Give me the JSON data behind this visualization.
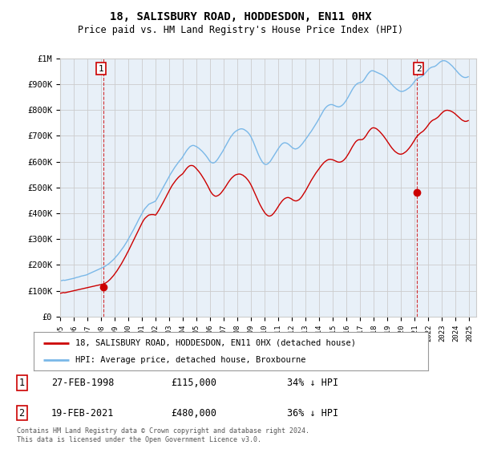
{
  "title": "18, SALISBURY ROAD, HODDESDON, EN11 0HX",
  "subtitle": "Price paid vs. HM Land Registry's House Price Index (HPI)",
  "footer": "Contains HM Land Registry data © Crown copyright and database right 2024.\nThis data is licensed under the Open Government Licence v3.0.",
  "legend_line1": "18, SALISBURY ROAD, HODDESDON, EN11 0HX (detached house)",
  "legend_line2": "HPI: Average price, detached house, Broxbourne",
  "sale1_date": "27-FEB-1998",
  "sale1_price": "£115,000",
  "sale1_hpi": "34% ↓ HPI",
  "sale2_date": "19-FEB-2021",
  "sale2_price": "£480,000",
  "sale2_hpi": "36% ↓ HPI",
  "sale1_x": 1998.15,
  "sale1_y": 115000,
  "sale2_x": 2021.13,
  "sale2_y": 480000,
  "ylim": [
    0,
    1000000
  ],
  "xlim": [
    1995.0,
    2025.5
  ],
  "hpi_color": "#7ab8e8",
  "hpi_fill_color": "#ddeeff",
  "sale_color": "#cc0000",
  "grid_color": "#cccccc",
  "background_color": "#ffffff",
  "chart_bg_color": "#e8f0f8",
  "hpi_x": [
    1995.0,
    1995.083,
    1995.167,
    1995.25,
    1995.333,
    1995.417,
    1995.5,
    1995.583,
    1995.667,
    1995.75,
    1995.833,
    1995.917,
    1996.0,
    1996.083,
    1996.167,
    1996.25,
    1996.333,
    1996.417,
    1996.5,
    1996.583,
    1996.667,
    1996.75,
    1996.833,
    1996.917,
    1997.0,
    1997.083,
    1997.167,
    1997.25,
    1997.333,
    1997.417,
    1997.5,
    1997.583,
    1997.667,
    1997.75,
    1997.833,
    1997.917,
    1998.0,
    1998.083,
    1998.167,
    1998.25,
    1998.333,
    1998.417,
    1998.5,
    1998.583,
    1998.667,
    1998.75,
    1998.833,
    1998.917,
    1999.0,
    1999.083,
    1999.167,
    1999.25,
    1999.333,
    1999.417,
    1999.5,
    1999.583,
    1999.667,
    1999.75,
    1999.833,
    1999.917,
    2000.0,
    2000.083,
    2000.167,
    2000.25,
    2000.333,
    2000.417,
    2000.5,
    2000.583,
    2000.667,
    2000.75,
    2000.833,
    2000.917,
    2001.0,
    2001.083,
    2001.167,
    2001.25,
    2001.333,
    2001.417,
    2001.5,
    2001.583,
    2001.667,
    2001.75,
    2001.833,
    2001.917,
    2002.0,
    2002.083,
    2002.167,
    2002.25,
    2002.333,
    2002.417,
    2002.5,
    2002.583,
    2002.667,
    2002.75,
    2002.833,
    2002.917,
    2003.0,
    2003.083,
    2003.167,
    2003.25,
    2003.333,
    2003.417,
    2003.5,
    2003.583,
    2003.667,
    2003.75,
    2003.833,
    2003.917,
    2004.0,
    2004.083,
    2004.167,
    2004.25,
    2004.333,
    2004.417,
    2004.5,
    2004.583,
    2004.667,
    2004.75,
    2004.833,
    2004.917,
    2005.0,
    2005.083,
    2005.167,
    2005.25,
    2005.333,
    2005.417,
    2005.5,
    2005.583,
    2005.667,
    2005.75,
    2005.833,
    2005.917,
    2006.0,
    2006.083,
    2006.167,
    2006.25,
    2006.333,
    2006.417,
    2006.5,
    2006.583,
    2006.667,
    2006.75,
    2006.833,
    2006.917,
    2007.0,
    2007.083,
    2007.167,
    2007.25,
    2007.333,
    2007.417,
    2007.5,
    2007.583,
    2007.667,
    2007.75,
    2007.833,
    2007.917,
    2008.0,
    2008.083,
    2008.167,
    2008.25,
    2008.333,
    2008.417,
    2008.5,
    2008.583,
    2008.667,
    2008.75,
    2008.833,
    2008.917,
    2009.0,
    2009.083,
    2009.167,
    2009.25,
    2009.333,
    2009.417,
    2009.5,
    2009.583,
    2009.667,
    2009.75,
    2009.833,
    2009.917,
    2010.0,
    2010.083,
    2010.167,
    2010.25,
    2010.333,
    2010.417,
    2010.5,
    2010.583,
    2010.667,
    2010.75,
    2010.833,
    2010.917,
    2011.0,
    2011.083,
    2011.167,
    2011.25,
    2011.333,
    2011.417,
    2011.5,
    2011.583,
    2011.667,
    2011.75,
    2011.833,
    2011.917,
    2012.0,
    2012.083,
    2012.167,
    2012.25,
    2012.333,
    2012.417,
    2012.5,
    2012.583,
    2012.667,
    2012.75,
    2012.833,
    2012.917,
    2013.0,
    2013.083,
    2013.167,
    2013.25,
    2013.333,
    2013.417,
    2013.5,
    2013.583,
    2013.667,
    2013.75,
    2013.833,
    2013.917,
    2014.0,
    2014.083,
    2014.167,
    2014.25,
    2014.333,
    2014.417,
    2014.5,
    2014.583,
    2014.667,
    2014.75,
    2014.833,
    2014.917,
    2015.0,
    2015.083,
    2015.167,
    2015.25,
    2015.333,
    2015.417,
    2015.5,
    2015.583,
    2015.667,
    2015.75,
    2015.833,
    2015.917,
    2016.0,
    2016.083,
    2016.167,
    2016.25,
    2016.333,
    2016.417,
    2016.5,
    2016.583,
    2016.667,
    2016.75,
    2016.833,
    2016.917,
    2017.0,
    2017.083,
    2017.167,
    2017.25,
    2017.333,
    2017.417,
    2017.5,
    2017.583,
    2017.667,
    2017.75,
    2017.833,
    2017.917,
    2018.0,
    2018.083,
    2018.167,
    2018.25,
    2018.333,
    2018.417,
    2018.5,
    2018.583,
    2018.667,
    2018.75,
    2018.833,
    2018.917,
    2019.0,
    2019.083,
    2019.167,
    2019.25,
    2019.333,
    2019.417,
    2019.5,
    2019.583,
    2019.667,
    2019.75,
    2019.833,
    2019.917,
    2020.0,
    2020.083,
    2020.167,
    2020.25,
    2020.333,
    2020.417,
    2020.5,
    2020.583,
    2020.667,
    2020.75,
    2020.833,
    2020.917,
    2021.0,
    2021.083,
    2021.167,
    2021.25,
    2021.333,
    2021.417,
    2021.5,
    2021.583,
    2021.667,
    2021.75,
    2021.833,
    2021.917,
    2022.0,
    2022.083,
    2022.167,
    2022.25,
    2022.333,
    2022.417,
    2022.5,
    2022.583,
    2022.667,
    2022.75,
    2022.833,
    2022.917,
    2023.0,
    2023.083,
    2023.167,
    2023.25,
    2023.333,
    2023.417,
    2023.5,
    2023.583,
    2023.667,
    2023.75,
    2023.833,
    2023.917,
    2024.0,
    2024.083,
    2024.167,
    2024.25,
    2024.333,
    2024.417,
    2024.5,
    2024.583,
    2024.667,
    2024.75,
    2024.833,
    2024.917
  ],
  "hpi_y": [
    138000,
    139000,
    140000,
    141000,
    140000,
    141000,
    142000,
    143000,
    144000,
    145000,
    146000,
    147000,
    148000,
    149000,
    151000,
    152000,
    153000,
    154000,
    156000,
    157000,
    158000,
    159000,
    160000,
    161000,
    163000,
    165000,
    167000,
    169000,
    171000,
    173000,
    175000,
    177000,
    179000,
    181000,
    183000,
    185000,
    187000,
    189000,
    191000,
    193000,
    196000,
    199000,
    202000,
    205000,
    209000,
    213000,
    217000,
    221000,
    226000,
    231000,
    236000,
    241000,
    247000,
    253000,
    259000,
    265000,
    271000,
    278000,
    285000,
    292000,
    300000,
    308000,
    316000,
    324000,
    332000,
    340000,
    349000,
    357000,
    366000,
    375000,
    383000,
    391000,
    399000,
    407000,
    415000,
    420000,
    425000,
    430000,
    435000,
    437000,
    439000,
    441000,
    443000,
    445000,
    448000,
    455000,
    463000,
    471000,
    479000,
    487000,
    495000,
    503000,
    511000,
    519000,
    527000,
    535000,
    543000,
    551000,
    558000,
    565000,
    572000,
    579000,
    585000,
    591000,
    597000,
    603000,
    608000,
    613000,
    620000,
    627000,
    634000,
    641000,
    647000,
    652000,
    657000,
    660000,
    662000,
    663000,
    662000,
    660000,
    658000,
    655000,
    652000,
    648000,
    644000,
    640000,
    635000,
    630000,
    625000,
    619000,
    613000,
    606000,
    600000,
    597000,
    595000,
    595000,
    597000,
    601000,
    606000,
    612000,
    619000,
    626000,
    633000,
    640000,
    648000,
    656000,
    664000,
    672000,
    680000,
    688000,
    695000,
    701000,
    707000,
    712000,
    716000,
    719000,
    722000,
    724000,
    726000,
    727000,
    727000,
    726000,
    724000,
    721000,
    718000,
    714000,
    709000,
    703000,
    695000,
    686000,
    676000,
    665000,
    654000,
    643000,
    632000,
    622000,
    613000,
    605000,
    598000,
    593000,
    590000,
    589000,
    590000,
    593000,
    597000,
    602000,
    609000,
    616000,
    623000,
    630000,
    637000,
    644000,
    651000,
    657000,
    663000,
    668000,
    671000,
    673000,
    673000,
    672000,
    670000,
    667000,
    663000,
    659000,
    655000,
    652000,
    650000,
    649000,
    650000,
    652000,
    655000,
    659000,
    664000,
    669000,
    675000,
    681000,
    687000,
    693000,
    699000,
    706000,
    712000,
    718000,
    725000,
    732000,
    739000,
    746000,
    753000,
    761000,
    769000,
    777000,
    785000,
    793000,
    800000,
    806000,
    811000,
    815000,
    818000,
    820000,
    821000,
    821000,
    820000,
    818000,
    816000,
    814000,
    813000,
    812000,
    813000,
    815000,
    818000,
    822000,
    827000,
    833000,
    840000,
    847000,
    855000,
    863000,
    871000,
    879000,
    886000,
    892000,
    897000,
    901000,
    904000,
    905000,
    906000,
    907000,
    910000,
    915000,
    921000,
    928000,
    935000,
    941000,
    946000,
    950000,
    952000,
    952000,
    951000,
    949000,
    947000,
    945000,
    943000,
    941000,
    939000,
    937000,
    934000,
    931000,
    927000,
    923000,
    918000,
    913000,
    908000,
    903000,
    898000,
    893000,
    889000,
    885000,
    881000,
    878000,
    875000,
    873000,
    872000,
    872000,
    873000,
    875000,
    877000,
    880000,
    883000,
    886000,
    890000,
    895000,
    900000,
    906000,
    912000,
    917000,
    921000,
    924000,
    926000,
    928000,
    930000,
    933000,
    937000,
    942000,
    947000,
    952000,
    957000,
    961000,
    964000,
    966000,
    967000,
    968000,
    970000,
    973000,
    977000,
    981000,
    985000,
    988000,
    990000,
    991000,
    991000,
    990000,
    988000,
    985000,
    982000,
    978000,
    974000,
    970000,
    965000,
    960000,
    955000,
    950000,
    945000,
    940000,
    936000,
    932000,
    929000,
    927000,
    926000,
    926000,
    927000,
    929000
  ],
  "sale_y": [
    90000,
    91000,
    92000,
    93000,
    92000,
    93000,
    94000,
    95000,
    96000,
    97000,
    98000,
    99000,
    100000,
    101000,
    102000,
    103000,
    104000,
    105000,
    106000,
    107000,
    108000,
    109000,
    110000,
    111000,
    112000,
    113000,
    114000,
    115000,
    116000,
    117000,
    118000,
    119000,
    120000,
    121000,
    122000,
    123000,
    124000,
    125000,
    126000,
    128000,
    130000,
    133000,
    136000,
    140000,
    144000,
    149000,
    154000,
    159000,
    165000,
    171000,
    177000,
    184000,
    191000,
    198000,
    205000,
    213000,
    221000,
    229000,
    237000,
    246000,
    254000,
    263000,
    272000,
    281000,
    290000,
    299000,
    308000,
    317000,
    327000,
    336000,
    345000,
    354000,
    362000,
    370000,
    377000,
    382000,
    386000,
    390000,
    393000,
    394000,
    395000,
    395000,
    395000,
    394000,
    393000,
    399000,
    406000,
    413000,
    421000,
    429000,
    437000,
    445000,
    454000,
    462000,
    471000,
    479000,
    488000,
    496000,
    504000,
    511000,
    517000,
    523000,
    529000,
    534000,
    539000,
    543000,
    547000,
    550000,
    554000,
    560000,
    566000,
    572000,
    577000,
    581000,
    584000,
    585000,
    585000,
    584000,
    581000,
    577000,
    572000,
    567000,
    562000,
    556000,
    550000,
    543000,
    536000,
    529000,
    521000,
    513000,
    505000,
    496000,
    487000,
    480000,
    474000,
    470000,
    467000,
    466000,
    467000,
    469000,
    472000,
    476000,
    481000,
    487000,
    493000,
    499000,
    506000,
    513000,
    520000,
    526000,
    532000,
    537000,
    541000,
    545000,
    548000,
    550000,
    551000,
    552000,
    552000,
    551000,
    549000,
    547000,
    543000,
    540000,
    535000,
    530000,
    524000,
    517000,
    509000,
    500000,
    490000,
    480000,
    470000,
    460000,
    451000,
    441000,
    432000,
    424000,
    416000,
    409000,
    402000,
    397000,
    393000,
    390000,
    389000,
    390000,
    392000,
    396000,
    401000,
    407000,
    413000,
    420000,
    427000,
    434000,
    440000,
    446000,
    451000,
    455000,
    458000,
    460000,
    461000,
    461000,
    459000,
    457000,
    454000,
    451000,
    449000,
    448000,
    448000,
    450000,
    452000,
    456000,
    461000,
    467000,
    474000,
    481000,
    488000,
    496000,
    504000,
    512000,
    520000,
    528000,
    535000,
    542000,
    549000,
    556000,
    562000,
    568000,
    574000,
    580000,
    586000,
    591000,
    596000,
    600000,
    603000,
    606000,
    608000,
    609000,
    609000,
    608000,
    607000,
    605000,
    603000,
    601000,
    599000,
    598000,
    598000,
    599000,
    601000,
    604000,
    608000,
    613000,
    619000,
    626000,
    633000,
    641000,
    649000,
    657000,
    664000,
    671000,
    677000,
    681000,
    684000,
    685000,
    685000,
    685000,
    686000,
    689000,
    694000,
    700000,
    707000,
    714000,
    720000,
    725000,
    729000,
    731000,
    731000,
    730000,
    728000,
    725000,
    721000,
    717000,
    712000,
    707000,
    702000,
    696000,
    690000,
    684000,
    677000,
    671000,
    664000,
    658000,
    652000,
    647000,
    642000,
    638000,
    635000,
    632000,
    630000,
    629000,
    629000,
    630000,
    632000,
    635000,
    638000,
    642000,
    647000,
    652000,
    658000,
    664000,
    671000,
    678000,
    685000,
    692000,
    698000,
    703000,
    707000,
    711000,
    714000,
    717000,
    721000,
    726000,
    731000,
    737000,
    743000,
    749000,
    754000,
    758000,
    761000,
    763000,
    765000,
    768000,
    771000,
    775000,
    780000,
    785000,
    789000,
    793000,
    796000,
    798000,
    799000,
    799000,
    798000,
    797000,
    795000,
    793000,
    790000,
    787000,
    783000,
    779000,
    775000,
    771000,
    767000,
    763000,
    760000,
    758000,
    756000,
    756000,
    757000,
    759000
  ]
}
